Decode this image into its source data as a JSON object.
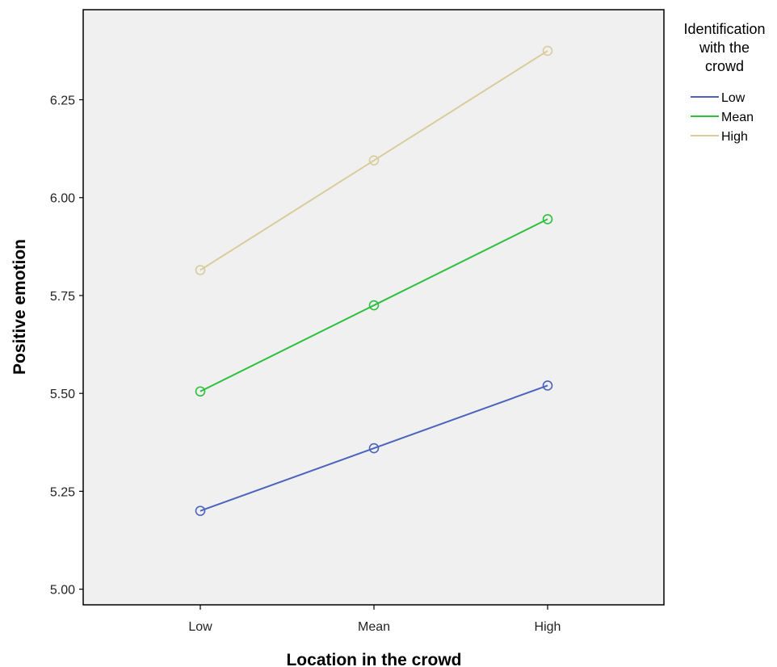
{
  "chart_data": {
    "type": "line",
    "xlabel": "Location in the crowd",
    "ylabel": "Positive emotion",
    "categories": [
      "Low",
      "Mean",
      "High"
    ],
    "ylim": [
      4.96,
      6.48
    ],
    "yticks": [
      "5.00",
      "5.25",
      "5.50",
      "5.75",
      "6.00",
      "6.25"
    ],
    "grid": false,
    "legend": {
      "title_lines": [
        "Identification",
        "with the",
        "crowd"
      ],
      "placement": "right"
    },
    "series": [
      {
        "name": "Low",
        "color": "#4a64bd",
        "values": [
          5.2,
          5.36,
          5.52
        ]
      },
      {
        "name": "Mean",
        "color": "#2fbf3f",
        "values": [
          5.505,
          5.725,
          5.945
        ]
      },
      {
        "name": "High",
        "color": "#d9cc9c",
        "values": [
          5.815,
          6.095,
          6.375
        ]
      }
    ],
    "marker": "open-circle",
    "plot_background": "#f0f0f0"
  }
}
